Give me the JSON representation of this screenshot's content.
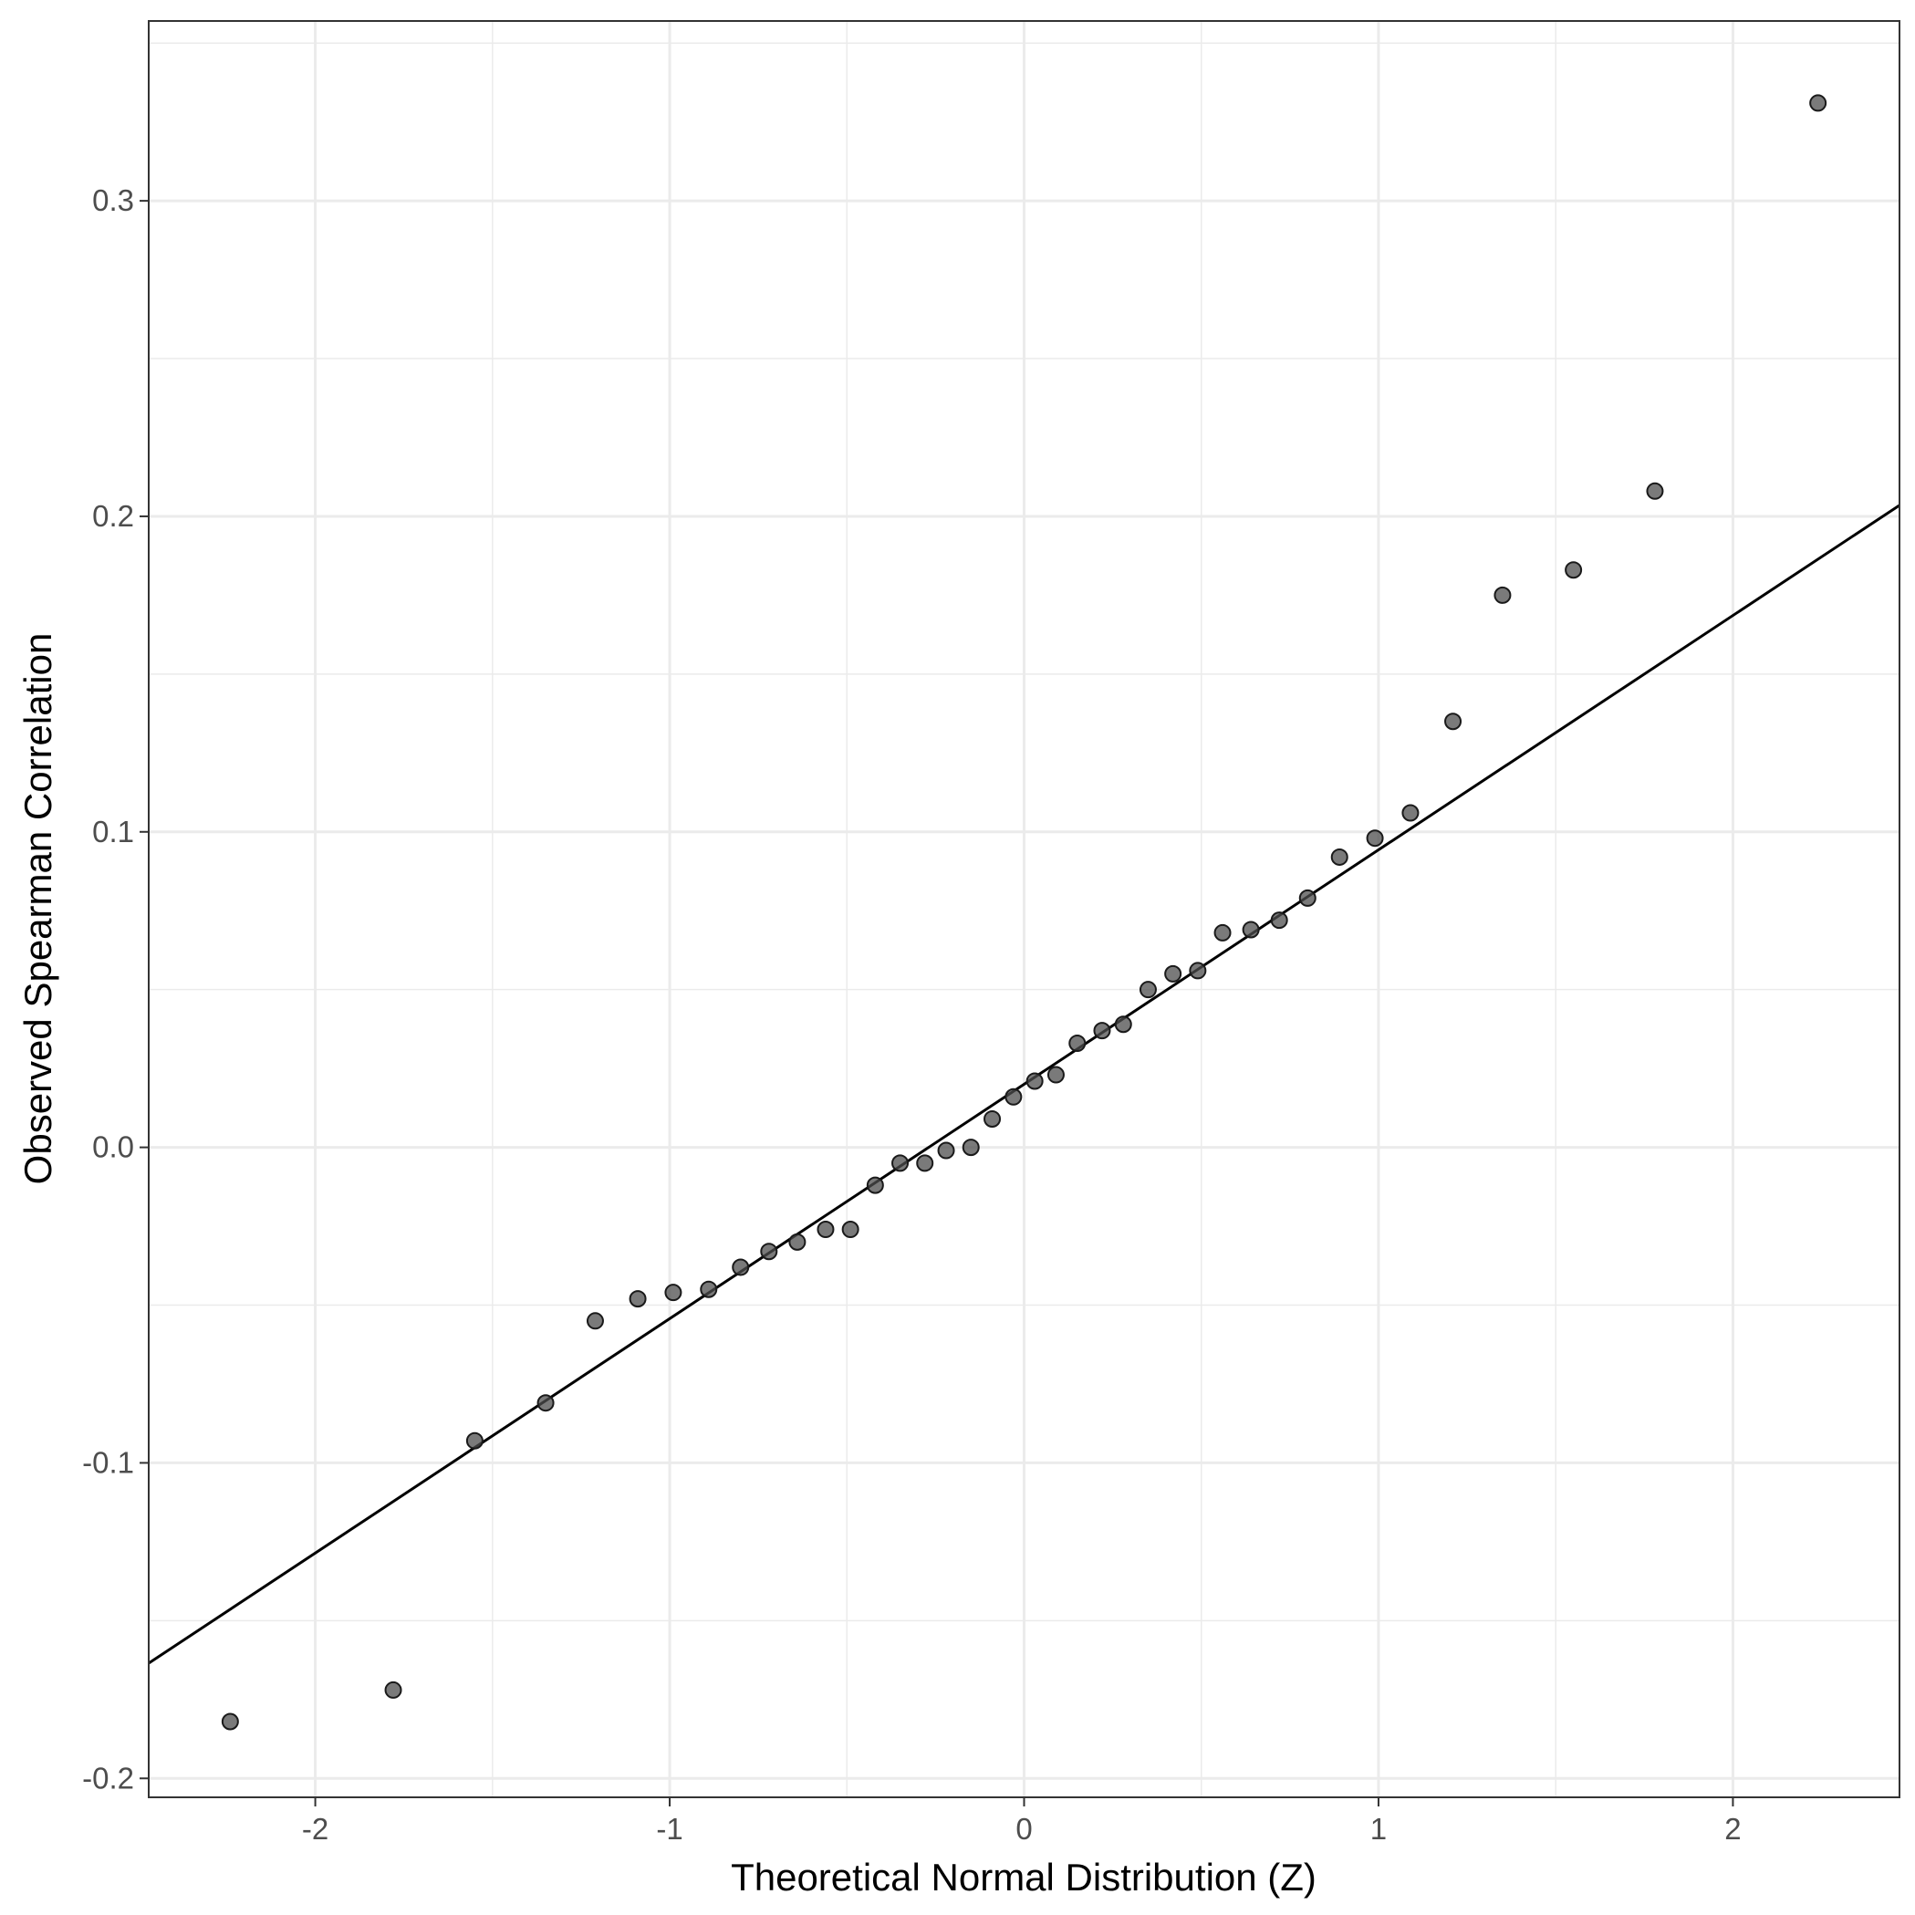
{
  "chart_data": {
    "type": "scatter",
    "title": "",
    "xlabel": "Theoretical Normal Distribution (Z)",
    "ylabel": "Observed Spearman Correlation",
    "xlim": [
      -2.47,
      2.47
    ],
    "ylim": [
      -0.206,
      0.357
    ],
    "x_ticks": [
      -2,
      -1,
      0,
      1,
      2
    ],
    "x_tick_labels": [
      "-2",
      "-1",
      "0",
      "1",
      "2"
    ],
    "y_ticks": [
      -0.2,
      -0.1,
      0.0,
      0.1,
      0.2,
      0.3
    ],
    "y_tick_labels": [
      "-0.2",
      "-0.1",
      "0.0",
      "0.1",
      "0.2",
      "0.3"
    ],
    "x_minor_ticks": [
      -1.5,
      -0.5,
      0.5,
      1.5
    ],
    "y_minor_ticks": [
      -0.15,
      -0.05,
      0.05,
      0.15,
      0.25,
      0.35
    ],
    "grid": true,
    "theme": "bw",
    "point_color": "#4d4d4d",
    "point_opacity": 0.75,
    "line_color": "#000000",
    "series": [
      {
        "x": [
          -2.24,
          -1.78,
          -1.55,
          -1.35,
          -1.21,
          -1.09,
          -0.99,
          -0.89,
          -0.8,
          -0.72,
          -0.64,
          -0.56,
          -0.49,
          -0.42,
          -0.35,
          -0.28,
          -0.22,
          -0.15,
          -0.09,
          -0.03,
          0.03,
          0.09,
          0.15,
          0.22,
          0.28,
          0.35,
          0.42,
          0.49,
          0.56,
          0.64,
          0.72,
          0.8,
          0.89,
          0.99,
          1.09,
          1.21,
          1.35,
          1.55,
          1.78,
          2.24
        ],
        "y": [
          -0.182,
          -0.172,
          -0.093,
          -0.081,
          -0.055,
          -0.048,
          -0.046,
          -0.045,
          -0.038,
          -0.033,
          -0.03,
          -0.026,
          -0.026,
          -0.012,
          -0.005,
          -0.005,
          -0.001,
          0.0,
          0.009,
          0.016,
          0.021,
          0.023,
          0.033,
          0.037,
          0.039,
          0.05,
          0.055,
          0.056,
          0.068,
          0.069,
          0.072,
          0.079,
          0.092,
          0.098,
          0.106,
          0.135,
          0.175,
          0.183,
          0.208,
          0.331
        ]
      }
    ],
    "reference_line": {
      "x": [
        -2.47,
        2.47
      ],
      "y": [
        -0.1635,
        0.2035
      ]
    }
  }
}
